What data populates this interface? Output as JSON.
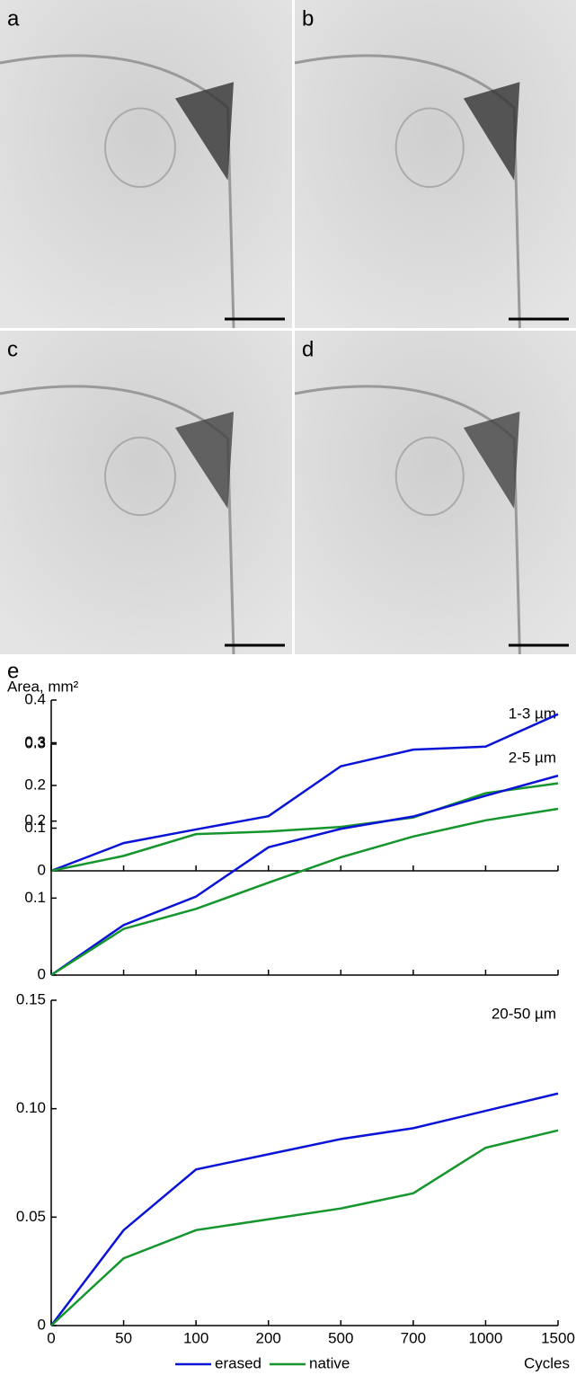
{
  "panels": [
    "a",
    "b",
    "c",
    "d"
  ],
  "chart_panel": "e",
  "chart_data": [
    {
      "type": "line",
      "ylabel": "Area, mm²",
      "subtitle": "1-3 µm",
      "ylim": [
        0,
        0.4
      ],
      "yticks": [
        0,
        0.1,
        0.2,
        0.3,
        0.4
      ],
      "series": [
        {
          "color": "#0a14d6",
          "values": [
            0,
            0.065,
            0.097,
            0.128,
            0.245,
            0.284,
            0.291,
            0.367
          ]
        },
        {
          "color": "#14962d",
          "values": [
            0,
            0.035,
            0.086,
            0.092,
            0.103,
            0.125,
            0.182,
            0.205
          ]
        }
      ]
    },
    {
      "type": "line",
      "subtitle": "2-5 µm",
      "ylim": [
        0,
        0.3
      ],
      "yticks": [
        0,
        0.1,
        0.2,
        0.3
      ],
      "series": [
        {
          "color": "#0a14d6",
          "values": [
            0,
            0.065,
            0.102,
            0.166,
            0.19,
            0.206,
            0.233,
            0.259
          ]
        },
        {
          "color": "#14962d",
          "values": [
            0,
            0.06,
            0.086,
            0.12,
            0.153,
            0.18,
            0.201,
            0.216
          ]
        }
      ]
    },
    {
      "type": "line",
      "subtitle": "20-50 µm",
      "xlabel": "Cycles",
      "categories": [
        "0",
        "50",
        "100",
        "200",
        "500",
        "700",
        "1000",
        "1500"
      ],
      "ylim": [
        0,
        0.15
      ],
      "yticks": [
        0,
        0.05,
        {
          "value": 0.1,
          "label": "0.10"
        },
        0.15
      ],
      "series": [
        {
          "name": "erased",
          "color": "#0a14d6",
          "values": [
            0,
            0.044,
            0.072,
            0.079,
            0.086,
            0.091,
            0.099,
            0.107
          ]
        },
        {
          "name": "native",
          "color": "#14962d",
          "values": [
            0,
            0.031,
            0.044,
            0.049,
            0.054,
            0.061,
            0.082,
            0.09
          ]
        }
      ]
    }
  ]
}
